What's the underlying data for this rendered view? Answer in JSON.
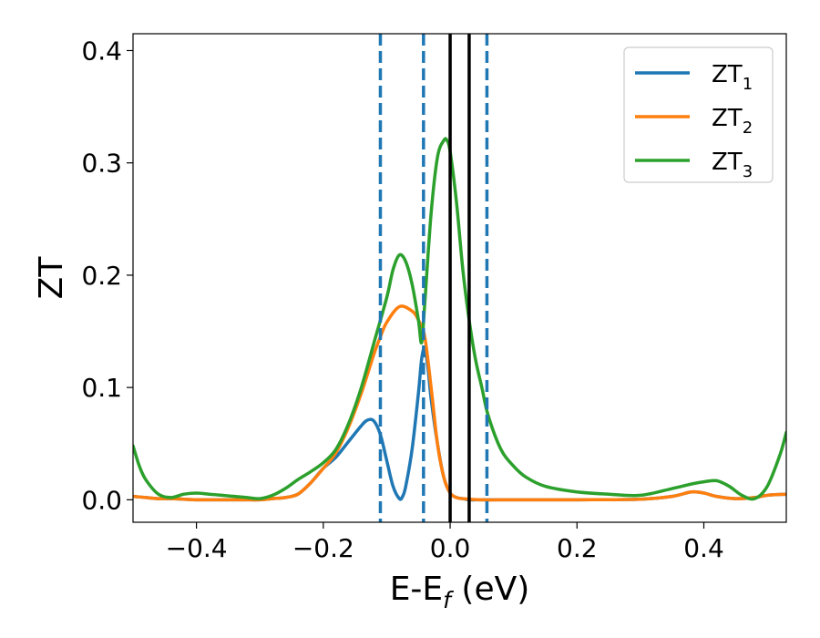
{
  "chart_data": {
    "type": "line",
    "xlabel_main": "E-E",
    "xlabel_sub": "f",
    "xlabel_tail": " (eV)",
    "ylabel": "ZT",
    "xlim": [
      -0.5,
      0.53
    ],
    "ylim": [
      -0.02,
      0.415
    ],
    "xticks": [
      -0.4,
      -0.2,
      0.0,
      0.2,
      0.4
    ],
    "xtick_labels": [
      "−0.4",
      "−0.2",
      "0.0",
      "0.2",
      "0.4"
    ],
    "yticks": [
      0.0,
      0.1,
      0.2,
      0.3,
      0.4
    ],
    "ytick_labels": [
      "0.0",
      "0.1",
      "0.2",
      "0.3",
      "0.4"
    ],
    "grid": false,
    "legend_position": "top-right",
    "series": [
      {
        "name": "ZT",
        "sub": "1",
        "color": "#1f77b4",
        "x": [
          -0.5,
          -0.48,
          -0.46,
          -0.44,
          -0.42,
          -0.4,
          -0.38,
          -0.36,
          -0.34,
          -0.32,
          -0.3,
          -0.28,
          -0.26,
          -0.24,
          -0.22,
          -0.2,
          -0.18,
          -0.16,
          -0.14,
          -0.13,
          -0.12,
          -0.11,
          -0.1,
          -0.09,
          -0.08,
          -0.075,
          -0.07,
          -0.06,
          -0.05,
          -0.045,
          -0.04,
          -0.035,
          -0.03,
          -0.02,
          -0.01,
          0.0,
          0.01,
          0.02,
          0.03,
          0.05,
          0.1,
          0.2,
          0.3,
          0.35,
          0.38,
          0.4,
          0.42,
          0.45,
          0.48,
          0.5,
          0.53
        ],
        "y": [
          0.003,
          0.002,
          0.001,
          0.001,
          0.0005,
          0.0,
          0.0,
          0.0,
          0.0,
          0.0,
          0.0,
          0.001,
          0.002,
          0.005,
          0.015,
          0.028,
          0.038,
          0.052,
          0.066,
          0.071,
          0.07,
          0.058,
          0.035,
          0.012,
          0.001,
          0.003,
          0.012,
          0.045,
          0.095,
          0.125,
          0.135,
          0.118,
          0.09,
          0.05,
          0.02,
          0.006,
          0.002,
          0.001,
          0.0,
          0.0,
          0.0,
          0.0,
          0.0005,
          0.003,
          0.007,
          0.006,
          0.003,
          0.001,
          0.002,
          0.004,
          0.005
        ]
      },
      {
        "name": "ZT",
        "sub": "2",
        "color": "#ff7f0e",
        "x": [
          -0.5,
          -0.48,
          -0.46,
          -0.44,
          -0.42,
          -0.4,
          -0.38,
          -0.36,
          -0.34,
          -0.32,
          -0.3,
          -0.28,
          -0.26,
          -0.24,
          -0.22,
          -0.2,
          -0.18,
          -0.16,
          -0.14,
          -0.12,
          -0.11,
          -0.1,
          -0.08,
          -0.06,
          -0.05,
          -0.04,
          -0.03,
          -0.02,
          -0.01,
          0.0,
          0.01,
          0.02,
          0.05,
          0.1,
          0.2,
          0.3,
          0.35,
          0.38,
          0.4,
          0.42,
          0.45,
          0.48,
          0.5,
          0.53
        ],
        "y": [
          0.003,
          0.002,
          0.001,
          0.001,
          0.0005,
          0.0,
          0.0,
          0.0,
          0.0,
          0.0,
          0.0,
          0.001,
          0.002,
          0.005,
          0.015,
          0.028,
          0.042,
          0.065,
          0.095,
          0.13,
          0.145,
          0.158,
          0.172,
          0.168,
          0.16,
          0.145,
          0.1,
          0.05,
          0.02,
          0.006,
          0.002,
          0.001,
          0.0,
          0.0,
          0.0,
          0.0005,
          0.003,
          0.007,
          0.006,
          0.003,
          0.001,
          0.002,
          0.004,
          0.005
        ]
      },
      {
        "name": "ZT",
        "sub": "3",
        "color": "#2ca02c",
        "x": [
          -0.5,
          -0.49,
          -0.48,
          -0.46,
          -0.44,
          -0.42,
          -0.4,
          -0.38,
          -0.36,
          -0.34,
          -0.32,
          -0.3,
          -0.28,
          -0.26,
          -0.24,
          -0.22,
          -0.2,
          -0.18,
          -0.16,
          -0.14,
          -0.12,
          -0.1,
          -0.09,
          -0.08,
          -0.07,
          -0.06,
          -0.05,
          -0.045,
          -0.04,
          -0.03,
          -0.02,
          -0.01,
          -0.005,
          0.0,
          0.01,
          0.02,
          0.03,
          0.04,
          0.05,
          0.06,
          0.08,
          0.1,
          0.12,
          0.15,
          0.2,
          0.25,
          0.3,
          0.35,
          0.38,
          0.4,
          0.42,
          0.44,
          0.46,
          0.48,
          0.5,
          0.52,
          0.53
        ],
        "y": [
          0.048,
          0.03,
          0.018,
          0.005,
          0.002,
          0.005,
          0.006,
          0.005,
          0.004,
          0.003,
          0.002,
          0.001,
          0.004,
          0.01,
          0.018,
          0.025,
          0.033,
          0.045,
          0.068,
          0.1,
          0.14,
          0.18,
          0.205,
          0.218,
          0.212,
          0.192,
          0.16,
          0.14,
          0.175,
          0.255,
          0.305,
          0.32,
          0.32,
          0.31,
          0.265,
          0.205,
          0.16,
          0.125,
          0.1,
          0.075,
          0.045,
          0.03,
          0.02,
          0.012,
          0.007,
          0.005,
          0.004,
          0.01,
          0.014,
          0.016,
          0.017,
          0.012,
          0.004,
          0.001,
          0.012,
          0.04,
          0.06
        ]
      }
    ],
    "vlines": [
      {
        "x": -0.11,
        "style": "dashed",
        "color": "#1f77b4"
      },
      {
        "x": -0.042,
        "style": "dashed",
        "color": "#1f77b4"
      },
      {
        "x": 0.0,
        "style": "solid",
        "color": "#000000"
      },
      {
        "x": 0.03,
        "style": "solid",
        "color": "#000000"
      },
      {
        "x": 0.058,
        "style": "dashed",
        "color": "#1f77b4"
      }
    ]
  }
}
